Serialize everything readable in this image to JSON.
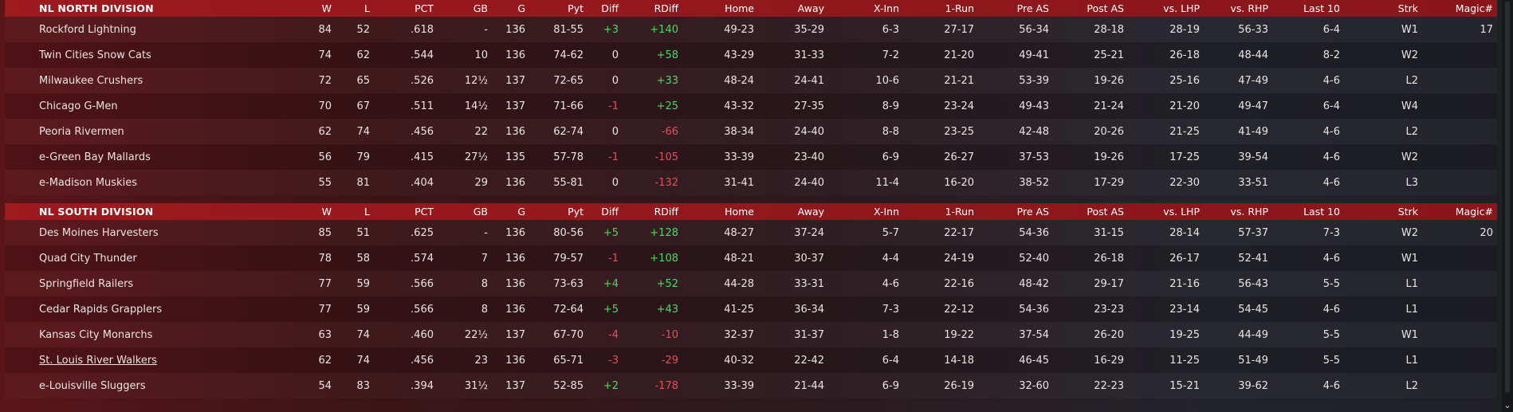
{
  "columns": {
    "w": "W",
    "l": "L",
    "pct": "PCT",
    "gb": "GB",
    "g": "G",
    "pyt": "Pyt",
    "diff": "Diff",
    "rdiff": "RDiff",
    "home": "Home",
    "away": "Away",
    "xinn": "X-Inn",
    "onerun": "1-Run",
    "preas": "Pre AS",
    "postas": "Post AS",
    "vlhp": "vs. LHP",
    "vrhp": "vs. RHP",
    "last10": "Last 10",
    "strk": "Strk",
    "magic": "Magic#"
  },
  "divisions": [
    {
      "name": "NL NORTH DIVISION",
      "teams": [
        {
          "name": "Rockford Lightning",
          "w": "84",
          "l": "52",
          "pct": ".618",
          "gb": "-",
          "g": "136",
          "pyt": "81-55",
          "diff": "+3",
          "rdiff": "+140",
          "home": "49-23",
          "away": "35-29",
          "xinn": "6-3",
          "onerun": "27-17",
          "preas": "56-34",
          "postas": "28-18",
          "vlhp": "28-19",
          "vrhp": "56-33",
          "last10": "6-4",
          "strk": "W1",
          "magic": "17"
        },
        {
          "name": "Twin Cities Snow Cats",
          "w": "74",
          "l": "62",
          "pct": ".544",
          "gb": "10",
          "g": "136",
          "pyt": "74-62",
          "diff": "0",
          "rdiff": "+58",
          "home": "43-29",
          "away": "31-33",
          "xinn": "7-2",
          "onerun": "21-20",
          "preas": "49-41",
          "postas": "25-21",
          "vlhp": "26-18",
          "vrhp": "48-44",
          "last10": "8-2",
          "strk": "W2",
          "magic": ""
        },
        {
          "name": "Milwaukee Crushers",
          "w": "72",
          "l": "65",
          "pct": ".526",
          "gb": "12½",
          "g": "137",
          "pyt": "72-65",
          "diff": "0",
          "rdiff": "+33",
          "home": "48-24",
          "away": "24-41",
          "xinn": "10-6",
          "onerun": "21-21",
          "preas": "53-39",
          "postas": "19-26",
          "vlhp": "25-16",
          "vrhp": "47-49",
          "last10": "4-6",
          "strk": "L2",
          "magic": ""
        },
        {
          "name": "Chicago G-Men",
          "w": "70",
          "l": "67",
          "pct": ".511",
          "gb": "14½",
          "g": "137",
          "pyt": "71-66",
          "diff": "-1",
          "rdiff": "+25",
          "home": "43-32",
          "away": "27-35",
          "xinn": "8-9",
          "onerun": "23-24",
          "preas": "49-43",
          "postas": "21-24",
          "vlhp": "21-20",
          "vrhp": "49-47",
          "last10": "6-4",
          "strk": "W4",
          "magic": ""
        },
        {
          "name": "Peoria Rivermen",
          "w": "62",
          "l": "74",
          "pct": ".456",
          "gb": "22",
          "g": "136",
          "pyt": "62-74",
          "diff": "0",
          "rdiff": "-66",
          "home": "38-34",
          "away": "24-40",
          "xinn": "8-8",
          "onerun": "23-25",
          "preas": "42-48",
          "postas": "20-26",
          "vlhp": "21-25",
          "vrhp": "41-49",
          "last10": "4-6",
          "strk": "L2",
          "magic": ""
        },
        {
          "name": "e-Green Bay  Mallards",
          "w": "56",
          "l": "79",
          "pct": ".415",
          "gb": "27½",
          "g": "135",
          "pyt": "57-78",
          "diff": "-1",
          "rdiff": "-105",
          "home": "33-39",
          "away": "23-40",
          "xinn": "6-9",
          "onerun": "26-27",
          "preas": "37-53",
          "postas": "19-26",
          "vlhp": "17-25",
          "vrhp": "39-54",
          "last10": "4-6",
          "strk": "W2",
          "magic": ""
        },
        {
          "name": "e-Madison Muskies",
          "w": "55",
          "l": "81",
          "pct": ".404",
          "gb": "29",
          "g": "136",
          "pyt": "55-81",
          "diff": "0",
          "rdiff": "-132",
          "home": "31-41",
          "away": "24-40",
          "xinn": "11-4",
          "onerun": "16-20",
          "preas": "38-52",
          "postas": "17-29",
          "vlhp": "22-30",
          "vrhp": "33-51",
          "last10": "4-6",
          "strk": "L3",
          "magic": ""
        }
      ]
    },
    {
      "name": "NL SOUTH DIVISION",
      "teams": [
        {
          "name": "Des Moines Harvesters",
          "w": "85",
          "l": "51",
          "pct": ".625",
          "gb": "-",
          "g": "136",
          "pyt": "80-56",
          "diff": "+5",
          "rdiff": "+128",
          "home": "48-27",
          "away": "37-24",
          "xinn": "5-7",
          "onerun": "22-17",
          "preas": "54-36",
          "postas": "31-15",
          "vlhp": "28-14",
          "vrhp": "57-37",
          "last10": "7-3",
          "strk": "W2",
          "magic": "20"
        },
        {
          "name": "Quad City Thunder",
          "w": "78",
          "l": "58",
          "pct": ".574",
          "gb": "7",
          "g": "136",
          "pyt": "79-57",
          "diff": "-1",
          "rdiff": "+108",
          "home": "48-21",
          "away": "30-37",
          "xinn": "4-4",
          "onerun": "24-19",
          "preas": "52-40",
          "postas": "26-18",
          "vlhp": "26-17",
          "vrhp": "52-41",
          "last10": "4-6",
          "strk": "W1",
          "magic": ""
        },
        {
          "name": "Springfield Railers",
          "w": "77",
          "l": "59",
          "pct": ".566",
          "gb": "8",
          "g": "136",
          "pyt": "73-63",
          "diff": "+4",
          "rdiff": "+52",
          "home": "44-28",
          "away": "33-31",
          "xinn": "4-6",
          "onerun": "22-16",
          "preas": "48-42",
          "postas": "29-17",
          "vlhp": "21-16",
          "vrhp": "56-43",
          "last10": "5-5",
          "strk": "L1",
          "magic": ""
        },
        {
          "name": "Cedar Rapids Grapplers",
          "w": "77",
          "l": "59",
          "pct": ".566",
          "gb": "8",
          "g": "136",
          "pyt": "72-64",
          "diff": "+5",
          "rdiff": "+43",
          "home": "41-25",
          "away": "36-34",
          "xinn": "7-3",
          "onerun": "22-12",
          "preas": "54-36",
          "postas": "23-23",
          "vlhp": "23-14",
          "vrhp": "54-45",
          "last10": "4-6",
          "strk": "L1",
          "magic": ""
        },
        {
          "name": "Kansas City Monarchs",
          "w": "63",
          "l": "74",
          "pct": ".460",
          "gb": "22½",
          "g": "137",
          "pyt": "67-70",
          "diff": "-4",
          "rdiff": "-10",
          "home": "32-37",
          "away": "31-37",
          "xinn": "1-8",
          "onerun": "19-22",
          "preas": "37-54",
          "postas": "26-20",
          "vlhp": "19-25",
          "vrhp": "44-49",
          "last10": "5-5",
          "strk": "W1",
          "magic": ""
        },
        {
          "name": "St. Louis River Walkers",
          "w": "62",
          "l": "74",
          "pct": ".456",
          "gb": "23",
          "g": "136",
          "pyt": "65-71",
          "diff": "-3",
          "rdiff": "-29",
          "home": "40-32",
          "away": "22-42",
          "xinn": "6-4",
          "onerun": "14-18",
          "preas": "46-45",
          "postas": "16-29",
          "vlhp": "11-25",
          "vrhp": "51-49",
          "last10": "5-5",
          "strk": "L1",
          "magic": "",
          "highlight": true
        },
        {
          "name": "e-Louisville Sluggers",
          "w": "54",
          "l": "83",
          "pct": ".394",
          "gb": "31½",
          "g": "137",
          "pyt": "52-85",
          "diff": "+2",
          "rdiff": "-178",
          "home": "33-39",
          "away": "21-44",
          "xinn": "6-9",
          "onerun": "26-19",
          "preas": "32-60",
          "postas": "22-23",
          "vlhp": "15-21",
          "vrhp": "39-62",
          "last10": "4-6",
          "strk": "L2",
          "magic": ""
        }
      ]
    }
  ],
  "scrollbar": {
    "arrow_icon": "chevron-down-icon",
    "arrow_glyph": "⌄"
  },
  "colors": {
    "header_bg": "#9d1a1f",
    "positive": "#4fd66a",
    "negative": "#e0525a"
  }
}
